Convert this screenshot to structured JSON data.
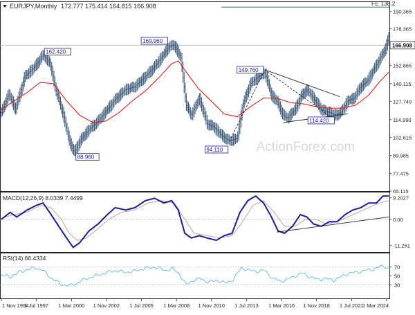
{
  "header": {
    "symbol": "EURJPY,Monthly",
    "ohlc": "172.777 175.414 164.815 166.908"
  },
  "watermark": "ActionForex.com",
  "colors": {
    "price_bar": "#2f4f6f",
    "ma": "#e0201c",
    "macd": "#1a1a9c",
    "macd_signal": "#c9a0a0",
    "rsi": "#5bb8e8",
    "fe_line": "#2e6b4f",
    "trendline": "#222222",
    "grid": "#c8c8c8",
    "label_border": "#1a1a9c",
    "label_text": "#1a1a9c"
  },
  "chart_data": [
    {
      "type": "bar",
      "title": "EURJPY,Monthly",
      "ylim": [
        65.115,
        197.0
      ],
      "y_ticks": [
        65.115,
        77.475,
        89.985,
        102.615,
        114.99,
        127.74,
        140.115,
        152.865,
        166.908,
        178.365,
        190.365
      ],
      "y_tick_labels": [
        "65.115",
        "77.475",
        "89.985",
        "102.615",
        "114.990",
        "127.740",
        "140.115",
        "152.865",
        "166.908",
        "178.365",
        "190.365"
      ],
      "x_range": [
        1994.83,
        2024.33
      ],
      "x_tick_positions": [
        1994.83,
        1997.5,
        2000.17,
        2002.83,
        2005.5,
        2008.17,
        2010.83,
        2013.5,
        2016.17,
        2018.83,
        2021.5,
        2024.17
      ],
      "x_tick_labels": [
        "1 Nov 1994",
        "1 Jul 1997",
        "1 Mar 2000",
        "1 Nov 2002",
        "1 Jul 2005",
        "1 Mar 2008",
        "1 Nov 2010",
        "1 Jul 2013",
        "1 Mar 2016",
        "1 Nov 2018",
        "1 Jul 2021",
        "1 Mar 2024"
      ],
      "current_price": 166.908,
      "current_price_label": "166.908",
      "fe_level": 138.2,
      "fe_level_price": 193.5,
      "fe_label": "FE 138.2",
      "price_path": [
        [
          1994.83,
          120
        ],
        [
          1995.4,
          133
        ],
        [
          1995.9,
          122
        ],
        [
          1996.6,
          145
        ],
        [
          1997.3,
          151
        ],
        [
          1998.0,
          160
        ],
        [
          1998.5,
          155
        ],
        [
          1999.0,
          135
        ],
        [
          1999.5,
          120
        ],
        [
          2000.0,
          100
        ],
        [
          2000.4,
          92
        ],
        [
          2000.8,
          100
        ],
        [
          2001.5,
          108
        ],
        [
          2002.2,
          114
        ],
        [
          2002.9,
          122
        ],
        [
          2003.6,
          130
        ],
        [
          2004.3,
          136
        ],
        [
          2005.0,
          138
        ],
        [
          2005.8,
          145
        ],
        [
          2006.5,
          152
        ],
        [
          2007.0,
          158
        ],
        [
          2007.6,
          166
        ],
        [
          2008.0,
          167
        ],
        [
          2008.5,
          158
        ],
        [
          2008.9,
          125
        ],
        [
          2009.3,
          118
        ],
        [
          2009.9,
          130
        ],
        [
          2010.5,
          112
        ],
        [
          2011.0,
          110
        ],
        [
          2011.6,
          104
        ],
        [
          2012.2,
          100
        ],
        [
          2012.8,
          102
        ],
        [
          2013.2,
          125
        ],
        [
          2013.8,
          140
        ],
        [
          2014.4,
          145
        ],
        [
          2014.9,
          148
        ],
        [
          2015.4,
          132
        ],
        [
          2015.8,
          128
        ],
        [
          2016.3,
          118
        ],
        [
          2016.6,
          116
        ],
        [
          2017.2,
          122
        ],
        [
          2017.7,
          132
        ],
        [
          2018.1,
          136
        ],
        [
          2018.6,
          130
        ],
        [
          2019.2,
          122
        ],
        [
          2019.8,
          120
        ],
        [
          2020.3,
          118
        ],
        [
          2020.7,
          120
        ],
        [
          2021.2,
          128
        ],
        [
          2021.7,
          130
        ],
        [
          2022.2,
          138
        ],
        [
          2022.7,
          142
        ],
        [
          2023.2,
          150
        ],
        [
          2023.7,
          158
        ],
        [
          2024.1,
          165
        ],
        [
          2024.33,
          173
        ]
      ],
      "ma_path": [
        [
          1994.83,
          122
        ],
        [
          1995.8,
          128
        ],
        [
          1996.8,
          134
        ],
        [
          1997.8,
          141
        ],
        [
          1998.8,
          140
        ],
        [
          1999.8,
          128
        ],
        [
          2000.8,
          118
        ],
        [
          2001.8,
          113
        ],
        [
          2002.8,
          114
        ],
        [
          2003.8,
          120
        ],
        [
          2004.8,
          128
        ],
        [
          2005.8,
          135
        ],
        [
          2006.8,
          144
        ],
        [
          2007.8,
          154
        ],
        [
          2008.3,
          156
        ],
        [
          2009.0,
          147
        ],
        [
          2009.8,
          137
        ],
        [
          2010.8,
          128
        ],
        [
          2011.8,
          119
        ],
        [
          2012.8,
          117
        ],
        [
          2013.8,
          124
        ],
        [
          2014.8,
          130
        ],
        [
          2015.8,
          130
        ],
        [
          2016.8,
          127
        ],
        [
          2017.8,
          126
        ],
        [
          2018.8,
          124
        ],
        [
          2019.8,
          123
        ],
        [
          2020.8,
          123
        ],
        [
          2021.8,
          125
        ],
        [
          2022.8,
          132
        ],
        [
          2023.6,
          141
        ],
        [
          2024.33,
          148
        ]
      ],
      "annotations": [
        {
          "text": "162.420",
          "x": 1998.0,
          "price": 162.42,
          "side": "right"
        },
        {
          "text": "88.960",
          "x": 2000.4,
          "price": 88.96,
          "side": "right"
        },
        {
          "text": "169.960",
          "x": 2007.6,
          "price": 169.96,
          "side": "left"
        },
        {
          "text": "94.110",
          "x": 2012.2,
          "price": 94.11,
          "side": "left"
        },
        {
          "text": "149.760",
          "x": 2014.9,
          "price": 149.76,
          "side": "left"
        },
        {
          "text": "114.420",
          "x": 2020.3,
          "price": 114.42,
          "side": "left"
        }
      ],
      "trendlines": [
        {
          "from": [
            2014.9,
            149.76
          ],
          "to": [
            2020.6,
            131
          ],
          "dashed": false
        },
        {
          "from": [
            2016.3,
            113
          ],
          "to": [
            2021.2,
            119
          ],
          "dashed": false
        },
        {
          "from": [
            2012.2,
            100
          ],
          "to": [
            2014.9,
            149.76
          ],
          "dashed": true
        },
        {
          "from": [
            2014.9,
            149.76
          ],
          "to": [
            2020.3,
            114.42
          ],
          "dashed": true
        }
      ]
    },
    {
      "type": "line",
      "title": "MACD(12,26,9) 8.0339 7.4499",
      "ylim": [
        -14.0,
        11.5
      ],
      "y_ticks": [
        9.2027,
        0.0,
        -11.251
      ],
      "y_tick_labels": [
        "9.2027",
        "0.00",
        "-11.251"
      ],
      "macd_path": [
        [
          1994.83,
          0
        ],
        [
          1995.5,
          3
        ],
        [
          1996.0,
          1
        ],
        [
          1996.8,
          4
        ],
        [
          1997.5,
          6
        ],
        [
          1998.0,
          7
        ],
        [
          1998.5,
          3
        ],
        [
          1999.2,
          -3
        ],
        [
          1999.8,
          -8
        ],
        [
          2000.3,
          -12
        ],
        [
          2000.8,
          -10
        ],
        [
          2001.5,
          -5
        ],
        [
          2002.2,
          -2
        ],
        [
          2002.9,
          2
        ],
        [
          2003.5,
          5
        ],
        [
          2004.3,
          4
        ],
        [
          2005.0,
          5
        ],
        [
          2005.8,
          8
        ],
        [
          2006.5,
          9
        ],
        [
          2007.2,
          7
        ],
        [
          2007.8,
          8
        ],
        [
          2008.3,
          4
        ],
        [
          2008.8,
          -6
        ],
        [
          2009.3,
          -8
        ],
        [
          2009.9,
          -7
        ],
        [
          2010.5,
          -8
        ],
        [
          2011.2,
          -9
        ],
        [
          2011.8,
          -7
        ],
        [
          2012.4,
          -6
        ],
        [
          2013.0,
          3
        ],
        [
          2013.6,
          8
        ],
        [
          2014.2,
          10
        ],
        [
          2014.8,
          7
        ],
        [
          2015.4,
          1
        ],
        [
          2015.9,
          -5
        ],
        [
          2016.4,
          -6
        ],
        [
          2017.0,
          -3
        ],
        [
          2017.6,
          2
        ],
        [
          2018.1,
          1
        ],
        [
          2018.6,
          -2
        ],
        [
          2019.2,
          -3
        ],
        [
          2019.8,
          -1
        ],
        [
          2020.4,
          -1
        ],
        [
          2021.0,
          2
        ],
        [
          2021.6,
          4
        ],
        [
          2022.2,
          5
        ],
        [
          2022.8,
          7
        ],
        [
          2023.4,
          7
        ],
        [
          2023.9,
          10
        ],
        [
          2024.33,
          10
        ]
      ],
      "signal_path": [
        [
          1994.83,
          0.5
        ],
        [
          1995.8,
          2
        ],
        [
          1996.8,
          3
        ],
        [
          1997.8,
          6
        ],
        [
          1998.6,
          5
        ],
        [
          1999.4,
          0
        ],
        [
          2000.0,
          -6
        ],
        [
          2000.6,
          -9
        ],
        [
          2001.3,
          -8
        ],
        [
          2002.2,
          -4
        ],
        [
          2003.0,
          0
        ],
        [
          2004.0,
          3
        ],
        [
          2005.0,
          4
        ],
        [
          2006.0,
          7
        ],
        [
          2007.0,
          8
        ],
        [
          2008.0,
          7
        ],
        [
          2008.8,
          0
        ],
        [
          2009.5,
          -6
        ],
        [
          2010.5,
          -7
        ],
        [
          2011.5,
          -8
        ],
        [
          2012.4,
          -7
        ],
        [
          2013.2,
          -1
        ],
        [
          2014.0,
          6
        ],
        [
          2014.8,
          8
        ],
        [
          2015.6,
          3
        ],
        [
          2016.4,
          -3
        ],
        [
          2017.2,
          -3
        ],
        [
          2018.0,
          0
        ],
        [
          2018.8,
          0
        ],
        [
          2019.6,
          -2
        ],
        [
          2020.4,
          -1
        ],
        [
          2021.2,
          1
        ],
        [
          2022.0,
          3
        ],
        [
          2022.8,
          5
        ],
        [
          2023.6,
          7
        ],
        [
          2024.33,
          8
        ]
      ],
      "trendline": {
        "from": [
          2015.8,
          -5.5
        ],
        "to": [
          2024.33,
          1.0
        ]
      }
    },
    {
      "type": "line",
      "title": "RSI(14) 66.4334",
      "ylim": [
        0,
        100
      ],
      "y_ticks": [
        70,
        50,
        30
      ],
      "y_tick_labels": [
        "70",
        "50",
        "30"
      ],
      "rsi_path": [
        [
          1994.83,
          52
        ],
        [
          1995.5,
          48
        ],
        [
          1996.2,
          58
        ],
        [
          1996.8,
          64
        ],
        [
          1997.5,
          68
        ],
        [
          1998.0,
          62
        ],
        [
          1998.6,
          46
        ],
        [
          1999.3,
          32
        ],
        [
          2000.0,
          28
        ],
        [
          2000.6,
          34
        ],
        [
          2001.3,
          44
        ],
        [
          2002.0,
          50
        ],
        [
          2002.7,
          56
        ],
        [
          2003.5,
          62
        ],
        [
          2004.2,
          58
        ],
        [
          2004.9,
          60
        ],
        [
          2005.7,
          66
        ],
        [
          2006.5,
          70
        ],
        [
          2007.3,
          62
        ],
        [
          2007.9,
          66
        ],
        [
          2008.4,
          54
        ],
        [
          2008.9,
          30
        ],
        [
          2009.4,
          40
        ],
        [
          2010.0,
          44
        ],
        [
          2010.6,
          36
        ],
        [
          2011.3,
          40
        ],
        [
          2011.9,
          34
        ],
        [
          2012.5,
          42
        ],
        [
          2013.1,
          68
        ],
        [
          2013.7,
          62
        ],
        [
          2014.3,
          60
        ],
        [
          2014.9,
          62
        ],
        [
          2015.5,
          44
        ],
        [
          2016.1,
          38
        ],
        [
          2016.6,
          42
        ],
        [
          2017.2,
          50
        ],
        [
          2017.8,
          56
        ],
        [
          2018.3,
          48
        ],
        [
          2018.9,
          42
        ],
        [
          2019.5,
          44
        ],
        [
          2020.1,
          40
        ],
        [
          2020.7,
          48
        ],
        [
          2021.3,
          56
        ],
        [
          2021.9,
          58
        ],
        [
          2022.5,
          62
        ],
        [
          2023.1,
          64
        ],
        [
          2023.6,
          70
        ],
        [
          2024.0,
          72
        ],
        [
          2024.33,
          66
        ]
      ]
    }
  ]
}
